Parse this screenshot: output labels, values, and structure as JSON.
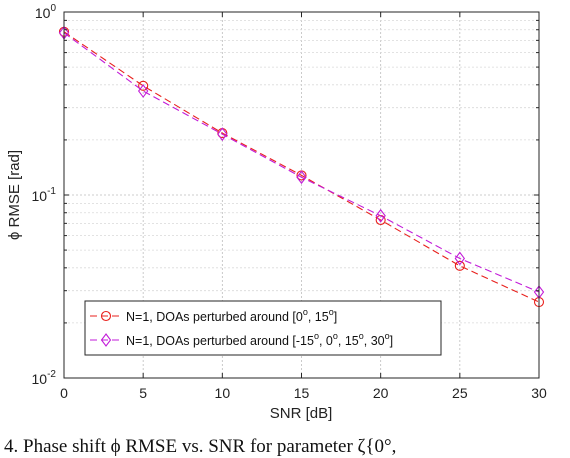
{
  "chart_data": {
    "type": "line",
    "xlabel": "SNR [dB]",
    "ylabel": "ϕ RMSE [rad]",
    "x_scale": "linear",
    "y_scale": "log",
    "xlim": [
      0,
      30
    ],
    "ylim": [
      0.01,
      1
    ],
    "x_ticks": [
      "0",
      "5",
      "10",
      "15",
      "20",
      "25",
      "30"
    ],
    "y_ticks": [
      {
        "value": 1,
        "base": "10",
        "exp": "0"
      },
      {
        "value": 0.1,
        "base": "10",
        "exp": "-1"
      },
      {
        "value": 0.01,
        "base": "10",
        "exp": "-2"
      }
    ],
    "grid": true,
    "legend_position": "bottom-left",
    "x": [
      0,
      5,
      10,
      15,
      20,
      25,
      30
    ],
    "series": [
      {
        "name": "N=1, DOAs perturbed around [0o, 15o]",
        "name_parts": [
          "N=1, DOAs perturbed around [0",
          "o",
          ", 15",
          "o",
          "]"
        ],
        "marker": "circle",
        "color": "#e8201c",
        "values": [
          0.78,
          0.395,
          0.218,
          0.128,
          0.073,
          0.041,
          0.026
        ]
      },
      {
        "name": "N=1, DOAs perturbed around [-15o, 0o, 15o, 30o]",
        "name_parts": [
          "N=1, DOAs perturbed around [-15",
          "o",
          ", 0",
          "o",
          ", 15",
          "o",
          ", 30",
          "o",
          "]"
        ],
        "marker": "diamond",
        "color": "#c21bd8",
        "values": [
          0.77,
          0.37,
          0.215,
          0.125,
          0.077,
          0.045,
          0.0295
        ]
      }
    ]
  },
  "caption": "4. Phase shift ϕ RMSE vs. SNR for parameter ζ{0°,"
}
